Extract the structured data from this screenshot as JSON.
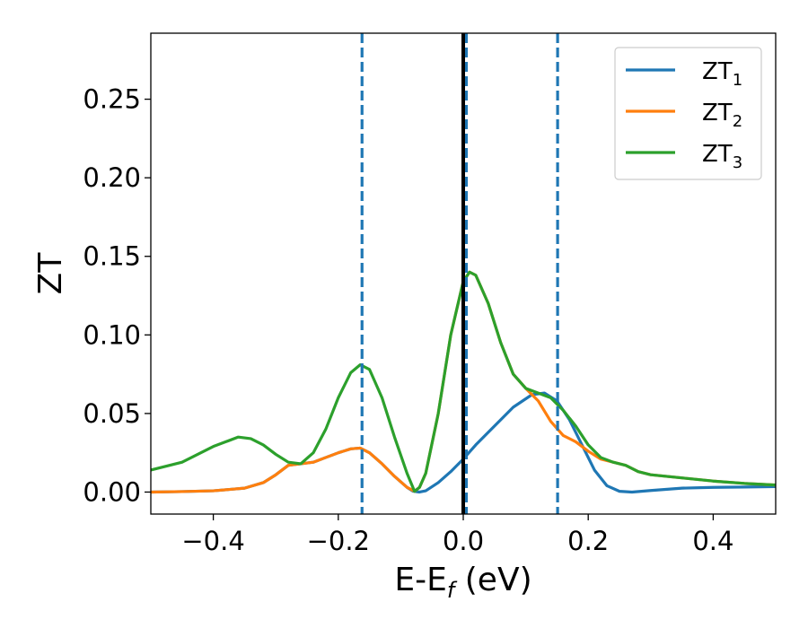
{
  "chart_data": {
    "type": "line",
    "xlabel": {
      "main": "E-E",
      "sub": "f",
      "tail": " (eV)"
    },
    "ylabel": "ZT",
    "xlim": [
      -0.5,
      0.5
    ],
    "ylim": [
      -0.014,
      0.292
    ],
    "xticks": [
      -0.4,
      -0.2,
      0.0,
      0.2,
      0.4
    ],
    "xtick_labels": [
      "−0.4",
      "−0.2",
      "0.0",
      "0.2",
      "0.4"
    ],
    "yticks": [
      0.0,
      0.05,
      0.1,
      0.15,
      0.2,
      0.25
    ],
    "ytick_labels": [
      "0.00",
      "0.05",
      "0.10",
      "0.15",
      "0.20",
      "0.25"
    ],
    "grid": false,
    "legend_position": "top-right",
    "series": [
      {
        "name": {
          "base": "ZT",
          "sub": "1"
        },
        "color": "#1f77b4",
        "points": [
          [
            -0.5,
            0.0
          ],
          [
            -0.45,
            0.0003
          ],
          [
            -0.4,
            0.0008
          ],
          [
            -0.35,
            0.0025
          ],
          [
            -0.32,
            0.006
          ],
          [
            -0.3,
            0.011
          ],
          [
            -0.28,
            0.017
          ],
          [
            -0.26,
            0.018
          ],
          [
            -0.24,
            0.019
          ],
          [
            -0.22,
            0.022
          ],
          [
            -0.2,
            0.025
          ],
          [
            -0.18,
            0.0275
          ],
          [
            -0.165,
            0.028
          ],
          [
            -0.15,
            0.025
          ],
          [
            -0.13,
            0.018
          ],
          [
            -0.11,
            0.01
          ],
          [
            -0.09,
            0.003
          ],
          [
            -0.08,
            0.0005
          ],
          [
            -0.07,
            0.0
          ],
          [
            -0.06,
            0.0008
          ],
          [
            -0.04,
            0.006
          ],
          [
            -0.02,
            0.013
          ],
          [
            0.0,
            0.021
          ],
          [
            0.02,
            0.03
          ],
          [
            0.05,
            0.042
          ],
          [
            0.08,
            0.054
          ],
          [
            0.11,
            0.062
          ],
          [
            0.13,
            0.063
          ],
          [
            0.15,
            0.058
          ],
          [
            0.17,
            0.046
          ],
          [
            0.19,
            0.03
          ],
          [
            0.21,
            0.014
          ],
          [
            0.23,
            0.004
          ],
          [
            0.25,
            0.0005
          ],
          [
            0.27,
            0.0
          ],
          [
            0.3,
            0.001
          ],
          [
            0.35,
            0.0025
          ],
          [
            0.4,
            0.003
          ],
          [
            0.45,
            0.0032
          ],
          [
            0.5,
            0.0035
          ]
        ]
      },
      {
        "name": {
          "base": "ZT",
          "sub": "2"
        },
        "color": "#ff7f0e",
        "points": [
          [
            -0.5,
            0.0
          ],
          [
            -0.45,
            0.0003
          ],
          [
            -0.4,
            0.0008
          ],
          [
            -0.35,
            0.0025
          ],
          [
            -0.32,
            0.006
          ],
          [
            -0.3,
            0.011
          ],
          [
            -0.28,
            0.017
          ],
          [
            -0.26,
            0.018
          ],
          [
            -0.24,
            0.019
          ],
          [
            -0.22,
            0.022
          ],
          [
            -0.2,
            0.025
          ],
          [
            -0.18,
            0.0275
          ],
          [
            -0.165,
            0.028
          ],
          [
            -0.15,
            0.025
          ],
          [
            -0.13,
            0.018
          ],
          [
            -0.11,
            0.01
          ],
          [
            -0.09,
            0.003
          ],
          [
            -0.078,
            0.0005
          ],
          [
            -0.07,
            0.003
          ],
          [
            -0.06,
            0.012
          ],
          [
            -0.04,
            0.05
          ],
          [
            -0.02,
            0.1
          ],
          [
            0.0,
            0.134
          ],
          [
            0.01,
            0.14
          ],
          [
            0.02,
            0.138
          ],
          [
            0.04,
            0.12
          ],
          [
            0.06,
            0.095
          ],
          [
            0.08,
            0.075
          ],
          [
            0.1,
            0.066
          ],
          [
            0.12,
            0.058
          ],
          [
            0.14,
            0.045
          ],
          [
            0.16,
            0.036
          ],
          [
            0.18,
            0.032
          ],
          [
            0.2,
            0.026
          ],
          [
            0.22,
            0.021
          ],
          [
            0.24,
            0.019
          ],
          [
            0.26,
            0.017
          ],
          [
            0.28,
            0.013
          ],
          [
            0.3,
            0.011
          ],
          [
            0.35,
            0.009
          ],
          [
            0.4,
            0.007
          ],
          [
            0.45,
            0.0055
          ],
          [
            0.5,
            0.0045
          ]
        ]
      },
      {
        "name": {
          "base": "ZT",
          "sub": "3"
        },
        "color": "#2ca02c",
        "points": [
          [
            -0.5,
            0.014
          ],
          [
            -0.47,
            0.017
          ],
          [
            -0.45,
            0.019
          ],
          [
            -0.42,
            0.025
          ],
          [
            -0.4,
            0.029
          ],
          [
            -0.38,
            0.032
          ],
          [
            -0.36,
            0.035
          ],
          [
            -0.34,
            0.034
          ],
          [
            -0.32,
            0.03
          ],
          [
            -0.3,
            0.024
          ],
          [
            -0.28,
            0.019
          ],
          [
            -0.26,
            0.018
          ],
          [
            -0.24,
            0.025
          ],
          [
            -0.22,
            0.04
          ],
          [
            -0.2,
            0.06
          ],
          [
            -0.18,
            0.076
          ],
          [
            -0.165,
            0.081
          ],
          [
            -0.15,
            0.078
          ],
          [
            -0.13,
            0.06
          ],
          [
            -0.11,
            0.035
          ],
          [
            -0.09,
            0.012
          ],
          [
            -0.078,
            0.0005
          ],
          [
            -0.07,
            0.003
          ],
          [
            -0.06,
            0.012
          ],
          [
            -0.04,
            0.05
          ],
          [
            -0.02,
            0.1
          ],
          [
            0.0,
            0.134
          ],
          [
            0.01,
            0.14
          ],
          [
            0.02,
            0.138
          ],
          [
            0.04,
            0.12
          ],
          [
            0.06,
            0.095
          ],
          [
            0.08,
            0.075
          ],
          [
            0.1,
            0.066
          ],
          [
            0.12,
            0.063
          ],
          [
            0.14,
            0.06
          ],
          [
            0.16,
            0.052
          ],
          [
            0.18,
            0.042
          ],
          [
            0.2,
            0.03
          ],
          [
            0.22,
            0.022
          ],
          [
            0.24,
            0.019
          ],
          [
            0.26,
            0.017
          ],
          [
            0.28,
            0.013
          ],
          [
            0.3,
            0.011
          ],
          [
            0.35,
            0.009
          ],
          [
            0.4,
            0.007
          ],
          [
            0.45,
            0.0055
          ],
          [
            0.5,
            0.0045
          ]
        ]
      }
    ],
    "vlines": [
      {
        "x": -0.162,
        "style": "dashed",
        "color": "#1f77b4"
      },
      {
        "x": 0.005,
        "style": "dashed",
        "color": "#1f77b4"
      },
      {
        "x": 0.151,
        "style": "dashed",
        "color": "#1f77b4"
      },
      {
        "x": 0.0,
        "style": "solid",
        "color": "#000000"
      }
    ]
  }
}
